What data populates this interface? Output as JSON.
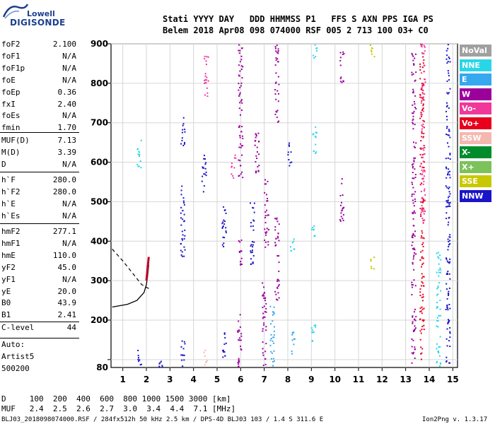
{
  "logo": {
    "line1": "Lowell",
    "line2": "DIGISONDE"
  },
  "header": {
    "labels": "Stati YYYY DAY   DDD HHMMSS P1   FFS S AXN PPS IGA PS",
    "values": "Belem 2018 Apr08 098 074000 RSF 005 2 713 100 03+ C0"
  },
  "params_a": [
    {
      "name": "foF2",
      "value": "2.100"
    },
    {
      "name": "foF1",
      "value": "N/A"
    },
    {
      "name": "foF1p",
      "value": "N/A"
    },
    {
      "name": "foE",
      "value": "N/A"
    },
    {
      "name": "foEp",
      "value": "0.36"
    },
    {
      "name": "fxI",
      "value": "2.40"
    },
    {
      "name": "foEs",
      "value": "N/A"
    },
    {
      "name": "fmin",
      "value": "1.70"
    }
  ],
  "params_b": [
    {
      "name": "MUF(D)",
      "value": "7.13"
    },
    {
      "name": "M(D)",
      "value": "3.39"
    },
    {
      "name": "D",
      "value": "N/A"
    }
  ],
  "params_c": [
    {
      "name": "h`F",
      "value": "280.0"
    },
    {
      "name": "h`F2",
      "value": "280.0"
    },
    {
      "name": "h`E",
      "value": "N/A"
    },
    {
      "name": "h`Es",
      "value": "N/A"
    }
  ],
  "params_d": [
    {
      "name": "hmF2",
      "value": "277.1"
    },
    {
      "name": "hmF1",
      "value": "N/A"
    },
    {
      "name": "hmE",
      "value": "110.0"
    },
    {
      "name": "yF2",
      "value": "45.0"
    },
    {
      "name": "yF1",
      "value": "N/A"
    },
    {
      "name": "yE",
      "value": "20.0"
    },
    {
      "name": "B0",
      "value": "43.9"
    },
    {
      "name": "B1",
      "value": "2.41"
    }
  ],
  "clevel": {
    "name": "C-level",
    "value": "44"
  },
  "auto": {
    "line1": "Auto:",
    "line2": "Artist5",
    "line3": "500200"
  },
  "footer": {
    "d_row": "D     100  200  400  600  800 1000 1500 3000 [km]",
    "muf_row": "MUF   2.4  2.5  2.6  2.7  3.0  3.4  4.4  7.1 [MHz]",
    "file_line": "BLJ03_2018098074000.RSF / 284fx512h 50 kHz 2.5 km / DPS-4D BLJ03 103 / 1.4 S 311.6 E",
    "version": "Ion2Png v. 1.3.17"
  },
  "legend": [
    {
      "label": "NoVal",
      "color": "#a0a0a0"
    },
    {
      "label": "NNE",
      "color": "#29d6e8"
    },
    {
      "label": "E",
      "color": "#35a8f0"
    },
    {
      "label": "W",
      "color": "#9b009b"
    },
    {
      "label": "Vo-",
      "color": "#f0389a"
    },
    {
      "label": "Vo+",
      "color": "#e8001c"
    },
    {
      "label": "SSW",
      "color": "#f4b8b0"
    },
    {
      "label": "X-",
      "color": "#008c2c"
    },
    {
      "label": "X+",
      "color": "#7cc25a"
    },
    {
      "label": "SSE",
      "color": "#c8c800"
    },
    {
      "label": "NNW",
      "color": "#1a14c8"
    }
  ],
  "chart_data": {
    "type": "scatter",
    "title": "",
    "xlabel": "",
    "ylabel": "",
    "xlim": [
      0.5,
      15.2
    ],
    "ylim": [
      80,
      900
    ],
    "x_ticks": [
      1,
      2,
      3,
      4,
      5,
      6,
      7,
      8,
      9,
      10,
      11,
      12,
      13,
      14,
      15
    ],
    "y_ticks": [
      100,
      200,
      300,
      400,
      500,
      600,
      700,
      800,
      900
    ],
    "y_tick_labels": [
      "",
      "200",
      "300",
      "400",
      "500",
      "600",
      "700",
      "800",
      "900"
    ],
    "y_min_label": "80",
    "grid": true,
    "echo_columns": [
      {
        "f": 1.7,
        "h0": 580,
        "h1": 660,
        "color": "#29d6e8"
      },
      {
        "f": 1.7,
        "h0": 80,
        "h1": 125,
        "color": "#1a14c8"
      },
      {
        "f": 2.6,
        "h0": 80,
        "h1": 100,
        "color": "#1a14c8"
      },
      {
        "f": 3.55,
        "h0": 80,
        "h1": 150,
        "color": "#1a14c8"
      },
      {
        "f": 3.55,
        "h0": 360,
        "h1": 560,
        "color": "#1a14c8"
      },
      {
        "f": 3.55,
        "h0": 640,
        "h1": 720,
        "color": "#1a14c8"
      },
      {
        "f": 4.45,
        "h0": 520,
        "h1": 620,
        "color": "#1a14c8"
      },
      {
        "f": 4.5,
        "h0": 85,
        "h1": 125,
        "color": "#f4b8b0"
      },
      {
        "f": 4.55,
        "h0": 760,
        "h1": 880,
        "color": "#f0389a"
      },
      {
        "f": 5.3,
        "h0": 100,
        "h1": 170,
        "color": "#1a14c8"
      },
      {
        "f": 5.3,
        "h0": 380,
        "h1": 500,
        "color": "#1a14c8"
      },
      {
        "f": 5.7,
        "h0": 560,
        "h1": 620,
        "color": "#f0389a"
      },
      {
        "f": 5.95,
        "h0": 80,
        "h1": 230,
        "color": "#9b009b"
      },
      {
        "f": 6.0,
        "h0": 340,
        "h1": 420,
        "color": "#9b009b"
      },
      {
        "f": 6.0,
        "h0": 560,
        "h1": 900,
        "color": "#9b009b"
      },
      {
        "f": 6.5,
        "h0": 330,
        "h1": 500,
        "color": "#1a14c8"
      },
      {
        "f": 6.7,
        "h0": 560,
        "h1": 700,
        "color": "#9b009b"
      },
      {
        "f": 7.0,
        "h0": 80,
        "h1": 300,
        "color": "#9b009b"
      },
      {
        "f": 7.1,
        "h0": 380,
        "h1": 560,
        "color": "#9b009b"
      },
      {
        "f": 7.35,
        "h0": 80,
        "h1": 240,
        "color": "#35a8f0"
      },
      {
        "f": 7.55,
        "h0": 250,
        "h1": 460,
        "color": "#9b009b"
      },
      {
        "f": 7.55,
        "h0": 700,
        "h1": 900,
        "color": "#9b009b"
      },
      {
        "f": 8.1,
        "h0": 590,
        "h1": 650,
        "color": "#1a14c8"
      },
      {
        "f": 8.2,
        "h0": 370,
        "h1": 420,
        "color": "#29d6e8"
      },
      {
        "f": 8.25,
        "h0": 110,
        "h1": 170,
        "color": "#35a8f0"
      },
      {
        "f": 9.1,
        "h0": 140,
        "h1": 200,
        "color": "#29d6e8"
      },
      {
        "f": 9.1,
        "h0": 390,
        "h1": 440,
        "color": "#29d6e8"
      },
      {
        "f": 9.15,
        "h0": 620,
        "h1": 690,
        "color": "#29d6e8"
      },
      {
        "f": 9.15,
        "h0": 860,
        "h1": 900,
        "color": "#29d6e8"
      },
      {
        "f": 10.3,
        "h0": 450,
        "h1": 560,
        "color": "#9b009b"
      },
      {
        "f": 10.3,
        "h0": 800,
        "h1": 880,
        "color": "#9b009b"
      },
      {
        "f": 11.6,
        "h0": 330,
        "h1": 360,
        "color": "#c8c800"
      },
      {
        "f": 11.6,
        "h0": 860,
        "h1": 900,
        "color": "#c8c800"
      },
      {
        "f": 13.35,
        "h0": 80,
        "h1": 880,
        "color": "#9b009b"
      },
      {
        "f": 13.7,
        "h0": 100,
        "h1": 900,
        "color": "#e8001c"
      },
      {
        "f": 13.75,
        "h0": 450,
        "h1": 900,
        "color": "#f0389a"
      },
      {
        "f": 14.4,
        "h0": 80,
        "h1": 380,
        "color": "#29d6e8"
      },
      {
        "f": 14.8,
        "h0": 80,
        "h1": 900,
        "color": "#1a14c8"
      }
    ],
    "trace_curve": {
      "f": [
        0.55,
        1.2,
        1.6,
        1.9,
        2.0,
        2.05,
        2.1
      ],
      "h": [
        233,
        240,
        250,
        270,
        290,
        310,
        340
      ]
    },
    "trace_dashed": {
      "f": [
        0.55,
        1.0,
        1.4,
        1.8,
        2.1
      ],
      "h": [
        380,
        350,
        320,
        290,
        280
      ]
    }
  }
}
